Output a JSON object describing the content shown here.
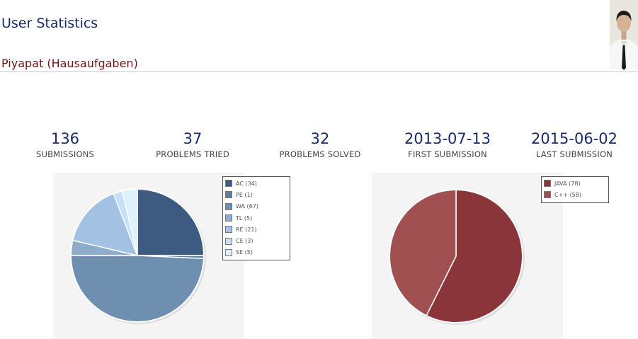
{
  "header": {
    "title": "User Statistics",
    "user": "Piyapat (Hausaufgaben)"
  },
  "stats": [
    {
      "value": "136",
      "label": "SUBMISSIONS"
    },
    {
      "value": "37",
      "label": "PROBLEMS TRIED"
    },
    {
      "value": "32",
      "label": "PROBLEMS SOLVED"
    },
    {
      "value": "2013-07-13",
      "label": "FIRST SUBMISSION"
    },
    {
      "value": "2015-06-02",
      "label": "LAST SUBMISSION"
    }
  ],
  "chart_data": [
    {
      "type": "pie",
      "legend_position": "right",
      "slices": [
        {
          "label": "AC (34)",
          "value": 34,
          "color": "#3d5a80"
        },
        {
          "label": "PE (1)",
          "value": 1,
          "color": "#5f7f9e"
        },
        {
          "label": "WA (67)",
          "value": 67,
          "color": "#6e8fb0"
        },
        {
          "label": "TL (5)",
          "value": 5,
          "color": "#8eadca"
        },
        {
          "label": "RE (21)",
          "value": 21,
          "color": "#a3c1e2"
        },
        {
          "label": "CE (3)",
          "value": 3,
          "color": "#c5e0f7"
        },
        {
          "label": "SE (5)",
          "value": 5,
          "color": "#dcf2fd"
        }
      ]
    },
    {
      "type": "pie",
      "legend_position": "right",
      "slices": [
        {
          "label": "JAVA (78)",
          "value": 78,
          "color": "#8a3539"
        },
        {
          "label": "C++ (58)",
          "value": 58,
          "color": "#a05050"
        }
      ]
    }
  ]
}
